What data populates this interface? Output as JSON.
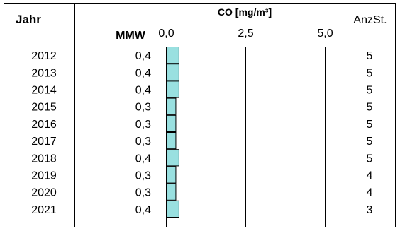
{
  "chart_data": {
    "type": "bar",
    "title": "CO [mg/m³]",
    "header_year": "Jahr",
    "header_value": "MMW",
    "header_count": "AnzSt.",
    "xlim": [
      0,
      5.0
    ],
    "tick_labels": [
      "0,0",
      "2,5",
      "5,0"
    ],
    "tick_values": [
      0,
      2.5,
      5.0
    ],
    "categories": [
      "2012",
      "2013",
      "2014",
      "2015",
      "2016",
      "2017",
      "2018",
      "2019",
      "2020",
      "2021"
    ],
    "value_labels": [
      "0,4",
      "0,4",
      "0,4",
      "0,3",
      "0,3",
      "0,3",
      "0,4",
      "0,3",
      "0,3",
      "0,4"
    ],
    "values": [
      0.4,
      0.4,
      0.4,
      0.3,
      0.3,
      0.3,
      0.4,
      0.3,
      0.3,
      0.4
    ],
    "station_counts": [
      "5",
      "5",
      "5",
      "5",
      "5",
      "5",
      "5",
      "4",
      "4",
      "3"
    ],
    "bar_color": "#99e0e0",
    "bar_stroke": "#000000",
    "grid": true
  }
}
